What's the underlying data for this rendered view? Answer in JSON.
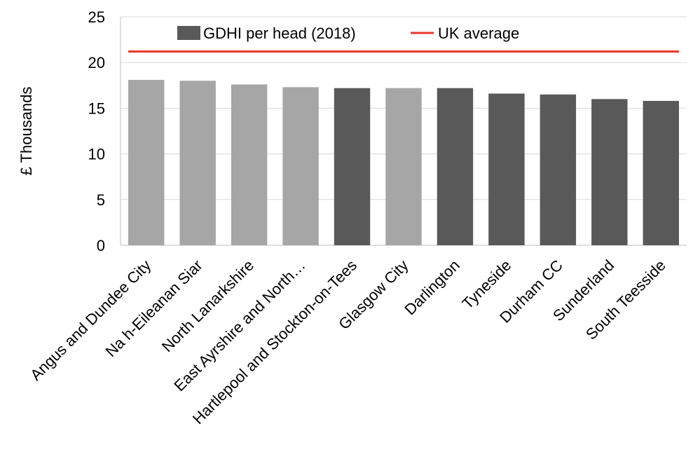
{
  "chart_data": {
    "type": "bar",
    "ylabel": "£ Thousands",
    "ylim": [
      0,
      25
    ],
    "yticks": [
      0,
      5,
      10,
      15,
      20,
      25
    ],
    "grid": true,
    "legend_position": "top",
    "categories": [
      "Angus and Dundee City",
      "Na h-Eileanan Siar",
      "North Lanarkshire",
      "East Ayrshire and North…",
      "Hartlepool and Stockton-on-Tees",
      "Glasgow City",
      "Darlington",
      "Tyneside",
      "Durham CC",
      "Sunderland",
      "South Teesside"
    ],
    "series": [
      {
        "name": "GDHI per head (2018)",
        "values": [
          18.1,
          18.0,
          17.6,
          17.3,
          17.2,
          17.2,
          17.2,
          16.6,
          16.5,
          16.0,
          15.8
        ],
        "colors": [
          "#a6a6a6",
          "#a6a6a6",
          "#a6a6a6",
          "#a6a6a6",
          "#595959",
          "#a6a6a6",
          "#595959",
          "#595959",
          "#595959",
          "#595959",
          "#595959"
        ]
      }
    ],
    "reference_line": {
      "name": "UK average",
      "value": 21.2,
      "color": "#e8392c"
    },
    "legend_swatch_color": "#595959"
  }
}
